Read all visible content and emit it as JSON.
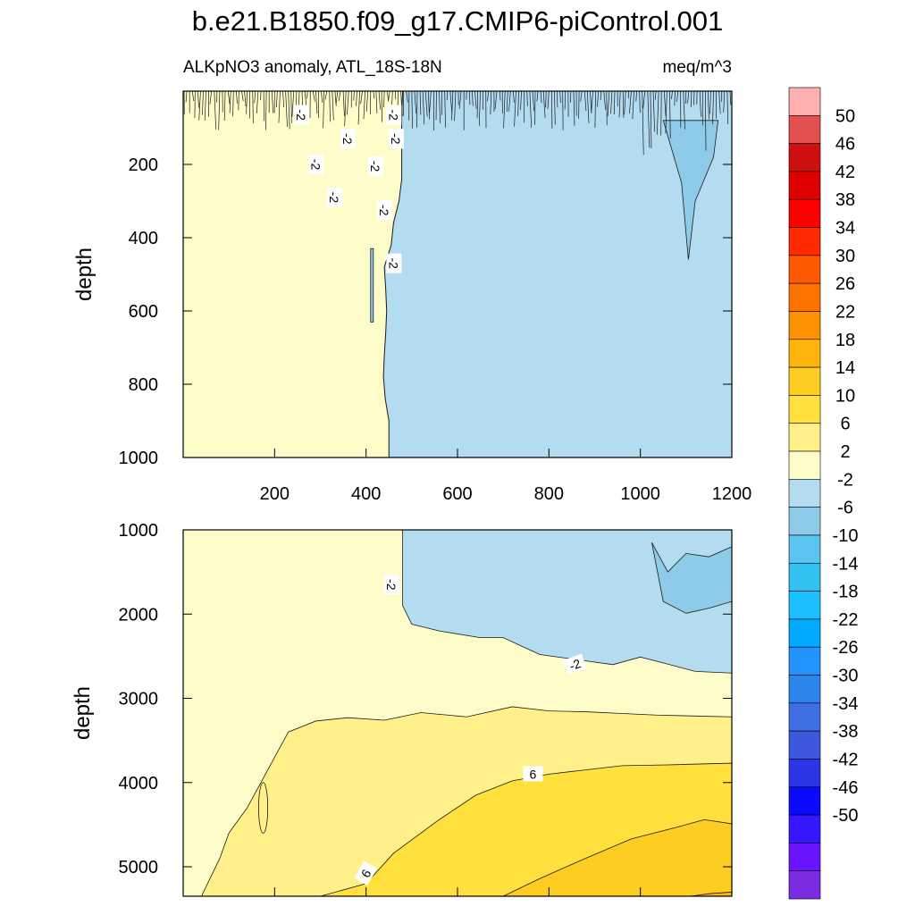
{
  "title": "b.e21.B1850.f09_g17.CMIP6-piControl.001",
  "colors": {
    "frame": "#000000",
    "contour_line": "#1a1a1a",
    "label_bg": "#ffffff"
  },
  "chart_data": [
    {
      "type": "contour",
      "panel": "upper",
      "left_label": "ALKpNO3 anomaly, ATL_18S-18N",
      "right_label": "meq/m^3",
      "ylabel": "depth",
      "xlim": [
        0,
        1200
      ],
      "ylim": [
        1000,
        0
      ],
      "x_ticks": [
        200,
        400,
        600,
        800,
        1000,
        1200
      ],
      "y_ticks": [
        200,
        400,
        600,
        800,
        1000
      ],
      "boundary_level": -2,
      "west_band": "-2 to 2",
      "east_band": "-6 to -2",
      "boundary_x": [
        [
          0,
          480
        ],
        [
          60,
          478
        ],
        [
          120,
          478
        ],
        [
          180,
          478
        ],
        [
          240,
          478
        ],
        [
          300,
          472
        ],
        [
          360,
          460
        ],
        [
          420,
          455
        ],
        [
          480,
          440
        ],
        [
          540,
          443
        ],
        [
          600,
          445
        ],
        [
          660,
          443
        ],
        [
          720,
          440
        ],
        [
          780,
          438
        ],
        [
          840,
          442
        ],
        [
          900,
          450
        ],
        [
          960,
          450
        ],
        [
          1000,
          450
        ]
      ],
      "features": [
        {
          "name": "deep-blue-finger",
          "x": 1110,
          "depth_top": 80,
          "depth_bottom": 460,
          "band": "-10 to -6"
        },
        {
          "name": "thin-lens",
          "x": 413,
          "depth_top": 430,
          "depth_bottom": 630,
          "band": "-6 to -2"
        }
      ],
      "contour_labels": [
        {
          "text": "-2",
          "x": 258,
          "y": 65,
          "angle": 90
        },
        {
          "text": "-2",
          "x": 460,
          "y": 65,
          "angle": 90
        },
        {
          "text": "-2",
          "x": 360,
          "y": 130,
          "angle": 90
        },
        {
          "text": "-2",
          "x": 465,
          "y": 130,
          "angle": 90
        },
        {
          "text": "-2",
          "x": 290,
          "y": 200,
          "angle": 90
        },
        {
          "text": "-2",
          "x": 420,
          "y": 205,
          "angle": 90
        },
        {
          "text": "-2",
          "x": 330,
          "y": 290,
          "angle": 90
        },
        {
          "text": "-2",
          "x": 440,
          "y": 325,
          "angle": 90
        },
        {
          "text": "-2",
          "x": 460,
          "y": 470,
          "angle": 90
        }
      ]
    },
    {
      "type": "contour",
      "panel": "lower",
      "ylabel": "depth",
      "xlim": [
        0,
        1200
      ],
      "ylim": [
        5350,
        1000
      ],
      "y_ticks": [
        1000,
        2000,
        3000,
        4000,
        5000
      ],
      "levels": [
        {
          "level": -6,
          "points": [
            [
              1025,
              1150
            ],
            [
              1060,
              1500
            ],
            [
              1100,
              1280
            ],
            [
              1150,
              1320
            ],
            [
              1200,
              1200
            ],
            [
              1200,
              1850
            ],
            [
              1150,
              1930
            ],
            [
              1100,
              1990
            ],
            [
              1050,
              1850
            ]
          ]
        },
        {
          "level": -2,
          "points": [
            [
              480,
              1000
            ],
            [
              480,
              1500
            ],
            [
              480,
              1900
            ],
            [
              500,
              2120
            ],
            [
              560,
              2200
            ],
            [
              650,
              2280
            ],
            [
              700,
              2280
            ],
            [
              780,
              2480
            ],
            [
              860,
              2540
            ],
            [
              940,
              2600
            ],
            [
              1000,
              2510
            ],
            [
              1050,
              2580
            ],
            [
              1120,
              2680
            ],
            [
              1200,
              2700
            ]
          ]
        },
        {
          "level": 2,
          "points": [
            [
              40,
              5350
            ],
            [
              80,
              4900
            ],
            [
              100,
              4600
            ],
            [
              140,
              4300
            ],
            [
              170,
              4000
            ],
            [
              200,
              3700
            ],
            [
              230,
              3400
            ],
            [
              290,
              3270
            ],
            [
              360,
              3230
            ],
            [
              440,
              3260
            ],
            [
              520,
              3170
            ],
            [
              620,
              3220
            ],
            [
              720,
              3100
            ],
            [
              800,
              3150
            ],
            [
              880,
              3160
            ],
            [
              960,
              3180
            ],
            [
              1040,
              3200
            ],
            [
              1120,
              3210
            ],
            [
              1200,
              3220
            ]
          ]
        },
        {
          "level": 6,
          "points": [
            [
              300,
              5350
            ],
            [
              400,
              5200
            ],
            [
              460,
              4840
            ],
            [
              560,
              4440
            ],
            [
              640,
              4150
            ],
            [
              720,
              3980
            ],
            [
              800,
              3900
            ],
            [
              880,
              3850
            ],
            [
              960,
              3800
            ],
            [
              1060,
              3790
            ],
            [
              1200,
              3770
            ]
          ]
        },
        {
          "level": 10,
          "points": [
            [
              700,
              5350
            ],
            [
              780,
              5140
            ],
            [
              880,
              4900
            ],
            [
              980,
              4670
            ],
            [
              1080,
              4530
            ],
            [
              1140,
              4440
            ],
            [
              1200,
              4490
            ]
          ]
        },
        {
          "level": 14,
          "points": [
            [
              1110,
              5350
            ],
            [
              1150,
              5320
            ],
            [
              1200,
              5300
            ]
          ]
        }
      ],
      "contour_labels": [
        {
          "text": "-2",
          "x": 455,
          "y": 1650,
          "angle": 90
        },
        {
          "text": "-2",
          "x": 857,
          "y": 2600,
          "angle": -20
        },
        {
          "text": "6",
          "x": 765,
          "y": 3900,
          "angle": 0
        },
        {
          "text": "6",
          "x": 400,
          "y": 5080,
          "angle": -60
        }
      ]
    }
  ],
  "colorbar": {
    "bands": [
      "#7b2ce0",
      "#6a14ff",
      "#3416ff",
      "#0a0aff",
      "#2a36e6",
      "#3d58df",
      "#3f6fe3",
      "#2b86eb",
      "#2394ff",
      "#02aaff",
      "#1cbfff",
      "#32c2ef",
      "#5ac3ef",
      "#8ecbe9",
      "#b3dcf1",
      "#fefcc8",
      "#fff08a",
      "#ffe03c",
      "#fdcd22",
      "#ffb30d",
      "#fd9200",
      "#fd7300",
      "#ff5900",
      "#ff2a00",
      "#ff0000",
      "#df0000",
      "#cf1010",
      "#e3504f",
      "#ffb0b0"
    ],
    "labels": [
      "-50",
      "-46",
      "-42",
      "-38",
      "-34",
      "-30",
      "-26",
      "-22",
      "-18",
      "-14",
      "-10",
      "-6",
      "-2",
      "2",
      "6",
      "10",
      "14",
      "18",
      "22",
      "26",
      "30",
      "34",
      "38",
      "42",
      "46",
      "50"
    ]
  }
}
